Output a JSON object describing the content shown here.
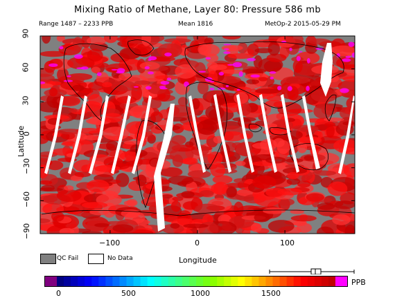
{
  "title": "Mixing Ratio of Methane, Layer 80: Pressure 586 mb",
  "subtitle": {
    "range": "Range 1487 – 2233 PPB",
    "mean": "Mean 1816",
    "instrument_date": "MetOp-2 2015-05-29 PM"
  },
  "axes": {
    "xlabel": "Longitude",
    "ylabel": "Latitude",
    "x_ticks": [
      "−100",
      "0",
      "100"
    ],
    "y_ticks": [
      "90",
      "60",
      "30",
      "0",
      "−30",
      "−60",
      "−90"
    ]
  },
  "legend": {
    "qc_fail": "QC Fail",
    "no_data": "No Data",
    "qc_fail_color": "#808080",
    "no_data_color": "#ffffff"
  },
  "colorbar": {
    "unit": "PPB",
    "tick_labels": [
      "0",
      "500",
      "1000",
      "1500"
    ],
    "colors": [
      "#800080",
      "#000080",
      "#0000ff",
      "#0080ff",
      "#00ffff",
      "#40ff80",
      "#80ff00",
      "#ffff00",
      "#ff8000",
      "#ff0000",
      "#c00000",
      "#ff00ff"
    ]
  },
  "chart_data": {
    "type": "heatmap",
    "title": "Mixing Ratio of Methane, Layer 80: Pressure 586 mb",
    "xlabel": "Longitude",
    "ylabel": "Latitude",
    "xlim": [
      -180,
      180
    ],
    "ylim": [
      -90,
      90
    ],
    "x_ticks": [
      -100,
      0,
      100
    ],
    "y_ticks": [
      90,
      60,
      30,
      0,
      -30,
      -60,
      -90
    ],
    "value_range": [
      1487,
      2233
    ],
    "mean": 1816,
    "unit": "PPB",
    "colorbar_ticks": [
      0,
      500,
      1000,
      1500
    ]
  }
}
